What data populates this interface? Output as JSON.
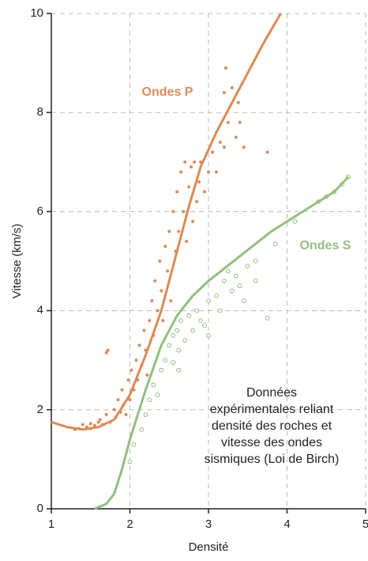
{
  "chart_data": {
    "type": "scatter",
    "xlabel": "Densité",
    "ylabel": "Vitesse (km/s)",
    "xlim": [
      1,
      5
    ],
    "xticks": [
      1,
      2,
      3,
      4,
      5
    ],
    "ylim": [
      0,
      10
    ],
    "yticks": [
      0,
      2,
      4,
      6,
      8,
      10
    ],
    "grid": true,
    "annotation": [
      "Données",
      "expérimentales reliant",
      "densité des roches et",
      "vitesse des ondes",
      "sismiques (Loi de Birch)"
    ],
    "series": [
      {
        "type": "line",
        "name": "Ondes P",
        "color": "#dd8a57",
        "x": [
          1,
          1.2,
          1.4,
          1.6,
          1.8,
          2.0,
          2.2,
          2.4,
          2.6,
          2.75,
          2.9,
          3.1,
          3.3,
          3.5,
          3.7,
          3.92
        ],
        "values": [
          1.75,
          1.65,
          1.6,
          1.65,
          1.8,
          2.3,
          3.1,
          4.0,
          5.2,
          6.1,
          6.9,
          7.6,
          8.2,
          8.8,
          9.4,
          10
        ]
      },
      {
        "type": "line",
        "name": "Ondes S",
        "color": "#93bf7e",
        "x": [
          1.55,
          1.7,
          1.8,
          1.9,
          2.0,
          2.2,
          2.4,
          2.6,
          2.8,
          3.0,
          3.4,
          3.8,
          4.2,
          4.6,
          4.78
        ],
        "values": [
          0,
          0.1,
          0.3,
          0.8,
          1.4,
          2.4,
          3.3,
          3.9,
          4.3,
          4.6,
          5.1,
          5.6,
          6.0,
          6.4,
          6.7
        ]
      },
      {
        "type": "scatter",
        "color": "#dd8a57",
        "filled": true,
        "x": [
          1.35,
          1.4,
          1.45,
          1.5,
          1.55,
          1.6,
          1.62,
          1.65,
          1.7,
          1.72,
          1.7,
          1.75,
          1.8,
          1.82,
          1.85,
          1.88,
          1.9,
          1.92,
          1.95,
          1.98,
          2.0,
          2.02,
          2.05,
          2.08,
          2.1,
          2.12,
          2.15,
          2.18,
          2.2,
          2.22,
          2.25,
          2.28,
          2.3,
          2.32,
          2.35,
          2.38,
          2.4,
          2.42,
          2.45,
          2.48,
          2.5,
          2.52,
          2.55,
          2.58,
          2.6,
          2.62,
          2.65,
          2.68,
          2.7,
          2.72,
          2.75,
          2.78,
          2.8,
          2.82,
          2.85,
          2.88,
          2.9,
          2.95,
          3.0,
          3.05,
          3.1,
          3.15,
          3.2,
          3.22,
          3.25,
          3.3,
          3.35,
          3.4,
          3.38,
          3.45,
          3.75,
          3.2,
          1.3,
          1.5
        ],
        "values": [
          1.62,
          1.7,
          1.65,
          1.72,
          1.68,
          1.75,
          1.8,
          1.7,
          3.15,
          3.2,
          1.9,
          1.75,
          2.0,
          1.85,
          2.2,
          1.95,
          2.4,
          2.1,
          1.9,
          2.6,
          2.2,
          2.8,
          2.4,
          3.0,
          2.6,
          3.3,
          2.9,
          3.6,
          3.2,
          2.7,
          3.8,
          4.2,
          3.5,
          4.6,
          4.0,
          5.0,
          4.4,
          3.8,
          5.3,
          4.8,
          5.6,
          4.2,
          6.0,
          5.2,
          6.4,
          5.6,
          6.8,
          6.0,
          7.0,
          5.4,
          6.5,
          6.9,
          5.8,
          7.0,
          6.2,
          6.6,
          7.0,
          6.4,
          6.8,
          7.2,
          6.8,
          7.4,
          7.3,
          8.9,
          7.8,
          8.5,
          7.5,
          7.8,
          8.2,
          7.3,
          7.2,
          8.4,
          1.6,
          1.62
        ]
      },
      {
        "type": "scatter",
        "color": "#93bf7e",
        "filled": false,
        "x": [
          2.0,
          2.05,
          2.15,
          2.2,
          2.25,
          2.3,
          2.35,
          2.4,
          2.45,
          2.5,
          2.55,
          2.6,
          2.62,
          2.65,
          2.7,
          2.75,
          2.8,
          2.85,
          2.9,
          2.95,
          3.0,
          3.0,
          3.1,
          3.15,
          3.2,
          3.25,
          3.3,
          3.35,
          3.4,
          3.5,
          3.45,
          3.6,
          3.6,
          3.75,
          3.85,
          4.1,
          4.4,
          4.5,
          4.6,
          4.7,
          4.78,
          2.62,
          2.55
        ],
        "values": [
          0.95,
          1.3,
          1.6,
          1.9,
          2.2,
          2.5,
          2.3,
          2.8,
          3.0,
          3.3,
          3.5,
          3.6,
          3.2,
          3.8,
          3.4,
          3.9,
          3.6,
          4.0,
          3.8,
          3.7,
          4.2,
          3.5,
          4.3,
          4.0,
          4.6,
          4.8,
          4.4,
          4.7,
          4.5,
          4.9,
          4.2,
          4.6,
          5.0,
          3.85,
          5.35,
          5.8,
          6.2,
          6.3,
          6.4,
          6.55,
          6.7,
          2.8,
          2.95
        ]
      }
    ]
  }
}
